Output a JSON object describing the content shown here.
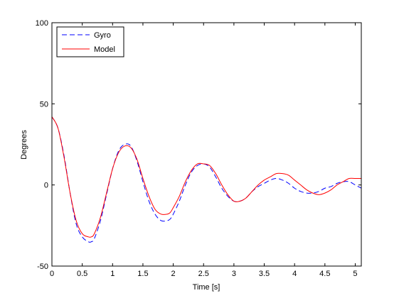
{
  "chart_data": {
    "type": "line",
    "title": "",
    "xlabel": "Time [s]",
    "ylabel": "Degrees",
    "xlim": [
      0,
      5.1
    ],
    "ylim": [
      -50,
      100
    ],
    "xticks": [
      0,
      0.5,
      1,
      1.5,
      2,
      2.5,
      3,
      3.5,
      4,
      4.5,
      5
    ],
    "xtick_labels": [
      "0",
      "0.5",
      "1",
      "1.5",
      "2",
      "2.5",
      "3",
      "3.5",
      "4",
      "4.5",
      "5"
    ],
    "yticks": [
      -50,
      0,
      50,
      100
    ],
    "ytick_labels": [
      "-50",
      "0",
      "50",
      "100"
    ],
    "grid": false,
    "legend_position": "top-left",
    "series": [
      {
        "name": "Gyro",
        "color": "#0000ff",
        "style": "dashed",
        "x": [
          0,
          0.1,
          0.2,
          0.3,
          0.4,
          0.5,
          0.6,
          0.65,
          0.7,
          0.8,
          0.9,
          1.0,
          1.1,
          1.2,
          1.3,
          1.4,
          1.5,
          1.6,
          1.7,
          1.8,
          1.9,
          1.95,
          2.0,
          2.1,
          2.2,
          2.3,
          2.4,
          2.5,
          2.6,
          2.7,
          2.8,
          2.9,
          3.0,
          3.1,
          3.2,
          3.3,
          3.4,
          3.5,
          3.6,
          3.7,
          3.8,
          3.9,
          4.0,
          4.1,
          4.2,
          4.3,
          4.4,
          4.5,
          4.6,
          4.7,
          4.8,
          4.9,
          5.0,
          5.1
        ],
        "y": [
          42,
          35,
          18,
          -5,
          -24,
          -32,
          -35,
          -35,
          -33,
          -22,
          -6,
          10,
          21,
          25,
          24,
          15,
          2,
          -10,
          -18,
          -22,
          -22,
          -21,
          -18,
          -10,
          0,
          8,
          12,
          13,
          11,
          5,
          -2,
          -7,
          -10,
          -10,
          -8,
          -4,
          -1,
          1,
          3,
          4,
          3,
          1,
          -2,
          -4,
          -5,
          -5,
          -4,
          -2,
          -1,
          1,
          2,
          2,
          0,
          -2
        ]
      },
      {
        "name": "Model",
        "color": "#ff0000",
        "style": "solid",
        "x": [
          0,
          0.1,
          0.2,
          0.3,
          0.4,
          0.5,
          0.6,
          0.65,
          0.7,
          0.8,
          0.9,
          1.0,
          1.1,
          1.2,
          1.3,
          1.4,
          1.5,
          1.6,
          1.7,
          1.8,
          1.9,
          1.95,
          2.0,
          2.1,
          2.2,
          2.3,
          2.4,
          2.5,
          2.6,
          2.7,
          2.8,
          2.9,
          3.0,
          3.1,
          3.2,
          3.3,
          3.4,
          3.5,
          3.6,
          3.7,
          3.8,
          3.9,
          4.0,
          4.1,
          4.2,
          4.3,
          4.4,
          4.5,
          4.6,
          4.7,
          4.8,
          4.9,
          5.0,
          5.1
        ],
        "y": [
          42,
          35,
          17,
          -5,
          -22,
          -30,
          -32,
          -32,
          -30,
          -20,
          -5,
          10,
          20,
          24,
          23,
          16,
          4,
          -7,
          -15,
          -18,
          -18,
          -17,
          -14,
          -7,
          2,
          9,
          13,
          13,
          12,
          7,
          0,
          -6,
          -10,
          -10,
          -8,
          -4,
          0,
          3,
          5,
          7,
          7,
          6,
          3,
          0,
          -3,
          -5,
          -6,
          -5,
          -3,
          0,
          2,
          4,
          4,
          4
        ]
      }
    ]
  }
}
